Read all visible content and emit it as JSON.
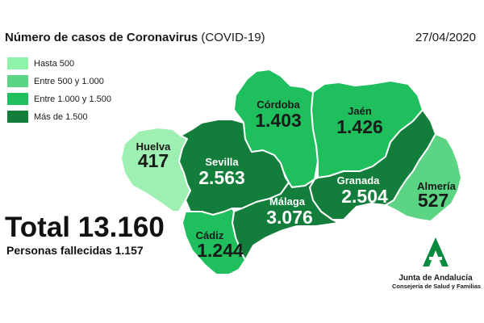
{
  "header": {
    "title_bold": "Número de casos de Coronavirus",
    "title_rest": " (COVID-19)",
    "date": "27/04/2020"
  },
  "legend": [
    {
      "label": "Hasta 500",
      "color": "#8ef2a9"
    },
    {
      "label": "Entre 500 y 1.000",
      "color": "#5bd483"
    },
    {
      "label": "Entre 1.000 y 1.500",
      "color": "#1ebf5c"
    },
    {
      "label": "Más de 1.500",
      "color": "#137e3b"
    }
  ],
  "provinces": {
    "huelva": {
      "name": "Huelva",
      "value": "417",
      "color": "#9ef0b2"
    },
    "sevilla": {
      "name": "Sevilla",
      "value": "2.563",
      "color": "#137e3b"
    },
    "cordoba": {
      "name": "Córdoba",
      "value": "1.403",
      "color": "#1ebf5c"
    },
    "jaen": {
      "name": "Jaén",
      "value": "1.426",
      "color": "#1ebf5c"
    },
    "granada": {
      "name": "Granada",
      "value": "2.504",
      "color": "#137e3b"
    },
    "almeria": {
      "name": "Almería",
      "value": "527",
      "color": "#5bd483"
    },
    "malaga": {
      "name": "Málaga",
      "value": "3.076",
      "color": "#137e3b"
    },
    "cadiz": {
      "name": "Cádiz",
      "value": "1.244",
      "color": "#1ebf5c"
    }
  },
  "summary": {
    "total": "Total 13.160",
    "fallecidos": "Personas fallecidas 1.157"
  },
  "logo": {
    "name": "Junta de Andalucía",
    "subtitle": "Consejería de Salud y Familias",
    "color": "#0a8a3e"
  }
}
